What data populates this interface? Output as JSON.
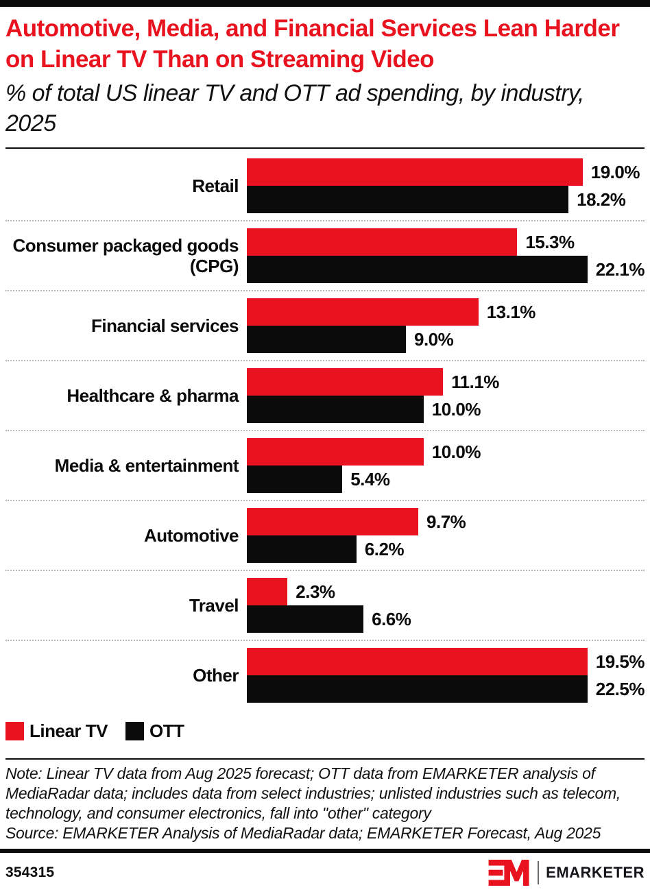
{
  "header": {
    "title": "Automotive, Media, and Financial Services Lean Harder on Linear TV Than on Streaming Video",
    "subtitle": "% of total US linear TV and OTT ad spending, by industry, 2025"
  },
  "chart_data": {
    "type": "bar",
    "orientation": "horizontal",
    "title": "Automotive, Media, and Financial Services Lean Harder on Linear TV Than on Streaming Video",
    "subtitle": "% of total US linear TV and OTT ad spending, by industry, 2025",
    "categories": [
      "Retail",
      "Consumer packaged goods (CPG)",
      "Financial services",
      "Healthcare & pharma",
      "Media & entertainment",
      "Automotive",
      "Travel",
      "Other"
    ],
    "series": [
      {
        "name": "Linear TV",
        "color": "#e8131f",
        "values": [
          19.0,
          15.3,
          13.1,
          11.1,
          10.0,
          9.7,
          2.3,
          19.5
        ],
        "labels": [
          "19.0%",
          "15.3%",
          "13.1%",
          "11.1%",
          "10.0%",
          "9.7%",
          "2.3%",
          "19.5%"
        ]
      },
      {
        "name": "OTT",
        "color": "#0b0b0b",
        "values": [
          18.2,
          22.1,
          9.0,
          10.0,
          5.4,
          6.2,
          6.6,
          22.5
        ],
        "labels": [
          "18.2%",
          "22.1%",
          "9.0%",
          "10.0%",
          "5.4%",
          "6.2%",
          "6.6%",
          "22.5%"
        ]
      }
    ],
    "xlim": [
      0,
      22.5
    ],
    "grid": false,
    "legend_position": "bottom-left",
    "value_suffix": "%"
  },
  "legend": {
    "items": [
      {
        "label": "Linear TV",
        "color": "#e8131f"
      },
      {
        "label": "OTT",
        "color": "#0b0b0b"
      }
    ]
  },
  "footer": {
    "note": "Note: Linear TV data from Aug 2025 forecast; OTT data from EMARKETER analysis of MediaRadar data; includes data from select industries; unlisted industries such as telecom, technology, and consumer electronics, fall into \"other\" category",
    "source": "Source: EMARKETER Analysis of MediaRadar data; EMARKETER Forecast, Aug 2025",
    "chart_id": "354315",
    "brand_name": "EMARKETER"
  },
  "colors": {
    "accent_red": "#e8131f",
    "bar_black": "#0b0b0b"
  }
}
